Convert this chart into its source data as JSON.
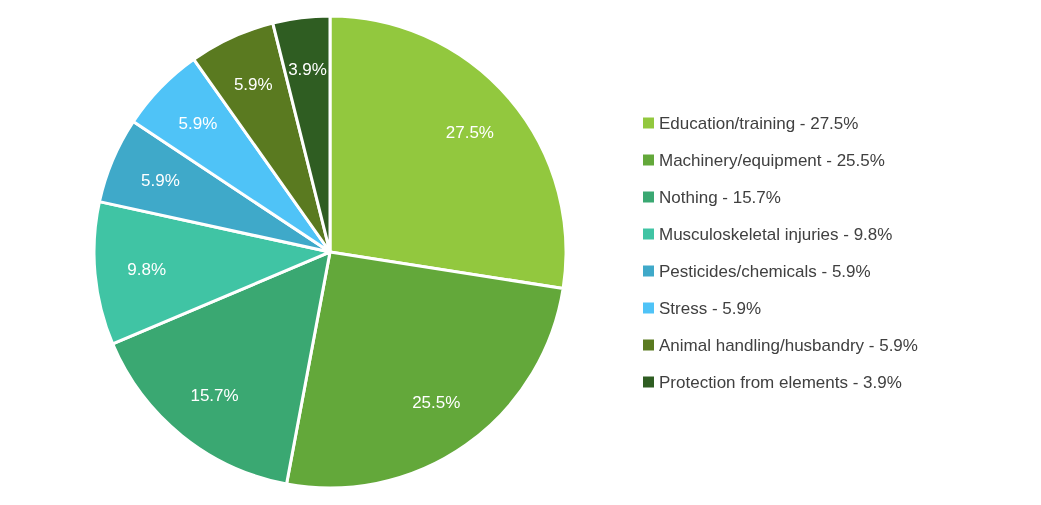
{
  "chart_data": {
    "type": "pie",
    "categories": [
      "Education/training - 27.5%",
      "Machinery/equipment - 25.5%",
      "Nothing - 15.7%",
      "Musculoskeletal injuries - 9.8%",
      "Pesticides/chemicals - 5.9%",
      "Stress - 5.9%",
      "Animal handling/husbandry - 5.9%",
      "Protection from elements - 3.9%"
    ],
    "values": [
      27.5,
      25.5,
      15.7,
      9.8,
      5.9,
      5.9,
      5.9,
      3.9
    ],
    "value_labels": [
      "27.5%",
      "25.5%",
      "15.7%",
      "9.8%",
      "5.9%",
      "5.9%",
      "5.9%",
      "3.9%"
    ],
    "colors": [
      "#92c83e",
      "#63a83a",
      "#3aa872",
      "#40c4a4",
      "#3fa9c9",
      "#4fc3f7",
      "#5a7a20",
      "#2f5d22"
    ],
    "legend": "right"
  }
}
